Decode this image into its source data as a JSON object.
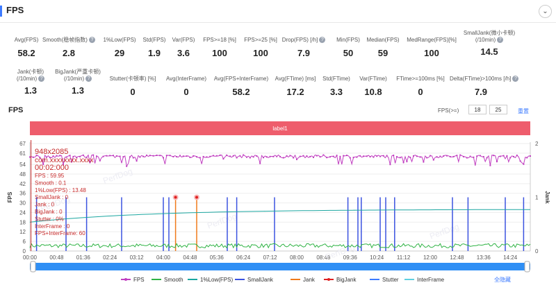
{
  "header": {
    "title": "FPS",
    "collapse_icon": "chevron-down-icon"
  },
  "stats_row1": [
    {
      "label": "Avg(FPS)",
      "value": "58.2",
      "help": false
    },
    {
      "label": "Smooth(稳帧指数)",
      "value": "2.8",
      "help": true
    },
    {
      "label": "1%Low(FPS)",
      "value": "29",
      "help": false
    },
    {
      "label": "Std(FPS)",
      "value": "1.9",
      "help": false
    },
    {
      "label": "Var(FPS)",
      "value": "3.6",
      "help": false
    },
    {
      "label": "FPS>=18 [%]",
      "value": "100",
      "help": false
    },
    {
      "label": "FPS>=25 [%]",
      "value": "100",
      "help": false
    },
    {
      "label": "Drop(FPS) [/h]",
      "value": "7.9",
      "help": true
    },
    {
      "label": "Min(FPS)",
      "value": "50",
      "help": false
    },
    {
      "label": "Median(FPS)",
      "value": "59",
      "help": false
    },
    {
      "label": "MedRange(FPS)[%]",
      "value": "100",
      "help": false
    },
    {
      "label": "SmallJank(微小卡顿)",
      "label2": "(/10min)",
      "value": "14.5",
      "help": true
    }
  ],
  "stats_row2": [
    {
      "label": "Jank(卡顿)",
      "label2": "(/10min)",
      "value": "1.3",
      "help": true
    },
    {
      "label": "BigJank(严重卡顿)",
      "label2": "(/10min)",
      "value": "1.3",
      "help": true
    },
    {
      "label": "Stutter(卡顿率) [%]",
      "value": "0",
      "help": false
    },
    {
      "label": "Avg(InterFrame)",
      "value": "0",
      "help": false
    },
    {
      "label": "Avg(FPS+InterFrame)",
      "value": "58.2",
      "help": false
    },
    {
      "label": "Avg(FTime) [ms]",
      "value": "17.2",
      "help": false
    },
    {
      "label": "Std(FTime)",
      "value": "3.3",
      "help": false
    },
    {
      "label": "Var(FTime)",
      "value": "10.8",
      "help": false
    },
    {
      "label": "FTime>=100ms [%]",
      "value": "0",
      "help": false
    },
    {
      "label": "Delta(FTime)>100ms [/h]",
      "value": "7.9",
      "help": true
    }
  ],
  "section_title": "FPS",
  "fps_threshold": {
    "label": "FPS(>=)",
    "value1": "18",
    "value2": "25",
    "reset_label": "重置"
  },
  "watermark": "PerfDog",
  "chart_data": {
    "type": "line",
    "label_band": "label1",
    "y_left": {
      "label": "FPS",
      "ticks": [
        0,
        6,
        12,
        18,
        24,
        30,
        36,
        42,
        48,
        54,
        61,
        67
      ],
      "range": [
        0,
        67
      ]
    },
    "y_right": {
      "label": "Jank",
      "ticks": [
        0,
        1,
        2
      ],
      "range": [
        0,
        2
      ]
    },
    "x_ticks": [
      "00:00",
      "00:48",
      "01:36",
      "02:24",
      "03:12",
      "04:00",
      "04:48",
      "05:36",
      "06:24",
      "07:12",
      "08:00",
      "08:48",
      "09:36",
      "10:24",
      "11:12",
      "12:00",
      "12:48",
      "13:36",
      "14:24"
    ],
    "x_range_seconds": [
      0,
      900
    ],
    "series": [
      {
        "name": "FPS",
        "color": "#c03ec0",
        "avg": 58.2
      },
      {
        "name": "Smooth",
        "color": "#2fb344",
        "avg": 2.8
      },
      {
        "name": "1%Low(FPS)",
        "color": "#1aa6a0",
        "start": 18,
        "end": 26
      },
      {
        "name": "SmallJank",
        "color": "#3a52e0",
        "times": [
          12,
          65,
          102,
          165,
          240,
          250,
          355,
          372,
          440,
          572,
          590,
          596,
          630,
          640,
          656,
          760,
          788,
          855,
          888
        ]
      },
      {
        "name": "Jank",
        "color": "#f07a1a",
        "times": [
          262,
          300
        ]
      },
      {
        "name": "BigJank",
        "color": "#e02020",
        "times": [
          262,
          300
        ]
      },
      {
        "name": "Stutter",
        "color": "#3d7bff"
      },
      {
        "name": "InterFrame",
        "color": "#5fd0e0"
      }
    ],
    "tooltip": {
      "title": "948x2085",
      "subtitle": "com.xxxxxxxx.xxxx",
      "time": "00:02:000",
      "lines": [
        "FPS          : 59.95",
        "Smooth       : 0.1",
        "1%Low(FPS)   : 13.48",
        "SmallJank    : 0",
        "Jank         : 0",
        "BigJank      : 0",
        "Stutter      : 0%",
        "InterFrame   : 0",
        "FPS+InterFrame: 60"
      ]
    }
  },
  "legend_hide_label": "全隐藏"
}
